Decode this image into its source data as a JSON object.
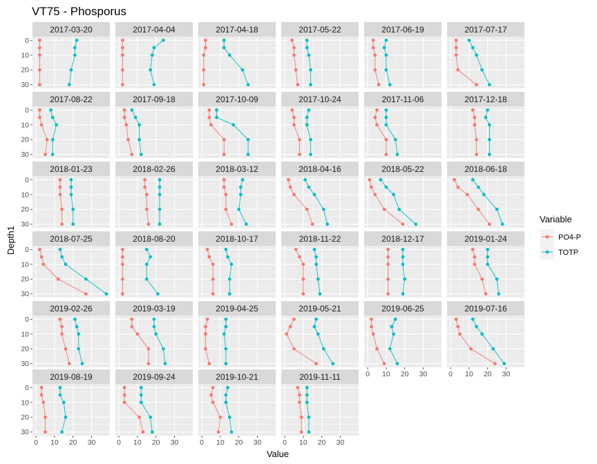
{
  "chart_data": {
    "type": "line",
    "title": "VT75  -  Phosporus",
    "xlabel": "Value",
    "ylabel": "Depth1",
    "xlim": [
      0,
      38
    ],
    "ylim": [
      0,
      30
    ],
    "x_ticks": [
      0,
      10,
      20,
      30
    ],
    "y_ticks": [
      0,
      10,
      20,
      30
    ],
    "y_reversed": true,
    "grid": true,
    "legend_title": "Variable",
    "legend_position": "right",
    "series_names": [
      "PO4-P",
      "TOTP"
    ],
    "series_colors": [
      "#F8766D",
      "#00BFC4"
    ],
    "depths": [
      0,
      5,
      10,
      20,
      30
    ],
    "panels": [
      {
        "label": "2017-03-20",
        "PO4-P": [
          2,
          2,
          2,
          2,
          2
        ],
        "TOTP": [
          22,
          21,
          21,
          19,
          18
        ]
      },
      {
        "label": "2017-04-04",
        "PO4-P": [
          2,
          2,
          2,
          2,
          2
        ],
        "TOTP": [
          24,
          19,
          18,
          17,
          19
        ]
      },
      {
        "label": "2017-04-18",
        "PO4-P": [
          2,
          2,
          1,
          1,
          1
        ],
        "TOTP": [
          12,
          12,
          15,
          22,
          25
        ]
      },
      {
        "label": "2017-05-22",
        "PO4-P": [
          4,
          5,
          5,
          6,
          7
        ],
        "TOTP": [
          12,
          12,
          13,
          14,
          14
        ]
      },
      {
        "label": "2017-06-19",
        "PO4-P": [
          3,
          3,
          4,
          4,
          6
        ],
        "TOTP": [
          10,
          9,
          10,
          10,
          12
        ]
      },
      {
        "label": "2017-07-17",
        "PO4-P": [
          3,
          3,
          3,
          4,
          14
        ],
        "TOTP": [
          10,
          12,
          14,
          17,
          21
        ]
      },
      {
        "label": "2017-08-22",
        "PO4-P": [
          2,
          2,
          3,
          6,
          5
        ],
        "TOTP": [
          8,
          9,
          11,
          9,
          9
        ]
      },
      {
        "label": "2017-09-18",
        "PO4-P": [
          3,
          3,
          4,
          5,
          7
        ],
        "TOTP": [
          7,
          9,
          11,
          11,
          12
        ]
      },
      {
        "label": "2017-10-09",
        "PO4-P": [
          4,
          4,
          5,
          12,
          12
        ],
        "TOTP": [
          8,
          8,
          17,
          25,
          25
        ]
      },
      {
        "label": "2017-10-24",
        "PO4-P": [
          4,
          5,
          5,
          8,
          8
        ],
        "TOTP": [
          13,
          12,
          12,
          14,
          14
        ]
      },
      {
        "label": "2017-11-06",
        "PO4-P": [
          5,
          4,
          5,
          10,
          10
        ],
        "TOTP": [
          10,
          10,
          10,
          15,
          16
        ]
      },
      {
        "label": "2017-12-18",
        "PO4-P": [
          12,
          13,
          13,
          14,
          14
        ],
        "TOTP": [
          20,
          19,
          21,
          21,
          21
        ]
      },
      {
        "label": "2018-01-23",
        "PO4-P": [
          13,
          13,
          13,
          14,
          14
        ],
        "TOTP": [
          19,
          19,
          19,
          20,
          20
        ]
      },
      {
        "label": "2018-02-26",
        "PO4-P": [
          14,
          14,
          15,
          15,
          16
        ],
        "TOTP": [
          22,
          22,
          22,
          22,
          22
        ]
      },
      {
        "label": "2018-03-12",
        "PO4-P": [
          12,
          12,
          13,
          13,
          16
        ],
        "TOTP": [
          22,
          21,
          21,
          20,
          24
        ]
      },
      {
        "label": "2018-04-16",
        "PO4-P": [
          2,
          3,
          5,
          12,
          15
        ],
        "TOTP": [
          11,
          13,
          16,
          21,
          23
        ]
      },
      {
        "label": "2018-05-22",
        "PO4-P": [
          1,
          2,
          4,
          9,
          19
        ],
        "TOTP": [
          7,
          10,
          14,
          17,
          26
        ]
      },
      {
        "label": "2018-06-18",
        "PO4-P": [
          2,
          4,
          9,
          15,
          21
        ],
        "TOTP": [
          12,
          15,
          18,
          25,
          28
        ]
      },
      {
        "label": "2018-07-25",
        "PO4-P": [
          2,
          3,
          4,
          12,
          27
        ],
        "TOTP": [
          13,
          14,
          16,
          27,
          38
        ]
      },
      {
        "label": "2018-08-20",
        "PO4-P": [
          2,
          2,
          2,
          2,
          2
        ],
        "TOTP": [
          15,
          17,
          15,
          15,
          21
        ]
      },
      {
        "label": "2018-10-17",
        "PO4-P": [
          3,
          4,
          6,
          6,
          6
        ],
        "TOTP": [
          13,
          14,
          16,
          15,
          15
        ]
      },
      {
        "label": "2018-11-22",
        "PO4-P": [
          6,
          8,
          10,
          10,
          10
        ],
        "TOTP": [
          16,
          17,
          17,
          18,
          19
        ]
      },
      {
        "label": "2018-12-17",
        "PO4-P": [
          11,
          11,
          11,
          11,
          11
        ],
        "TOTP": [
          19,
          19,
          19,
          20,
          19
        ]
      },
      {
        "label": "2019-01-24",
        "PO4-P": [
          12,
          13,
          13,
          17,
          19
        ],
        "TOTP": [
          20,
          20,
          20,
          25,
          26
        ]
      },
      {
        "label": "2019-02-26",
        "PO4-P": [
          13,
          14,
          14,
          16,
          18
        ],
        "TOTP": [
          21,
          22,
          23,
          23,
          25
        ]
      },
      {
        "label": "2019-03-19",
        "PO4-P": [
          7,
          7,
          10,
          16,
          16
        ],
        "TOTP": [
          19,
          19,
          20,
          24,
          25
        ]
      },
      {
        "label": "2019-04-25",
        "PO4-P": [
          3,
          2,
          2,
          2,
          4
        ],
        "TOTP": [
          13,
          13,
          12,
          13,
          13
        ]
      },
      {
        "label": "2019-05-21",
        "PO4-P": [
          5,
          3,
          1,
          5,
          17
        ],
        "TOTP": [
          17,
          16,
          18,
          21,
          26
        ]
      },
      {
        "label": "2019-06-25",
        "PO4-P": [
          2,
          2,
          3,
          5,
          9
        ],
        "TOTP": [
          15,
          13,
          14,
          12,
          16
        ]
      },
      {
        "label": "2019-07-16",
        "PO4-P": [
          3,
          4,
          5,
          11,
          24
        ],
        "TOTP": [
          12,
          14,
          17,
          23,
          29
        ]
      },
      {
        "label": "2019-08-19",
        "PO4-P": [
          3,
          3,
          4,
          5,
          5
        ],
        "TOTP": [
          13,
          13,
          15,
          16,
          14
        ]
      },
      {
        "label": "2019-09-24",
        "PO4-P": [
          3,
          3,
          3,
          11,
          13
        ],
        "TOTP": [
          12,
          12,
          12,
          17,
          18
        ]
      },
      {
        "label": "2019-10-21",
        "PO4-P": [
          6,
          5,
          6,
          10,
          9
        ],
        "TOTP": [
          14,
          13,
          13,
          15,
          16
        ]
      },
      {
        "label": "2019-11-11",
        "PO4-P": [
          7,
          8,
          8,
          9,
          9
        ],
        "TOTP": [
          12,
          12,
          12,
          13,
          13
        ]
      }
    ]
  }
}
